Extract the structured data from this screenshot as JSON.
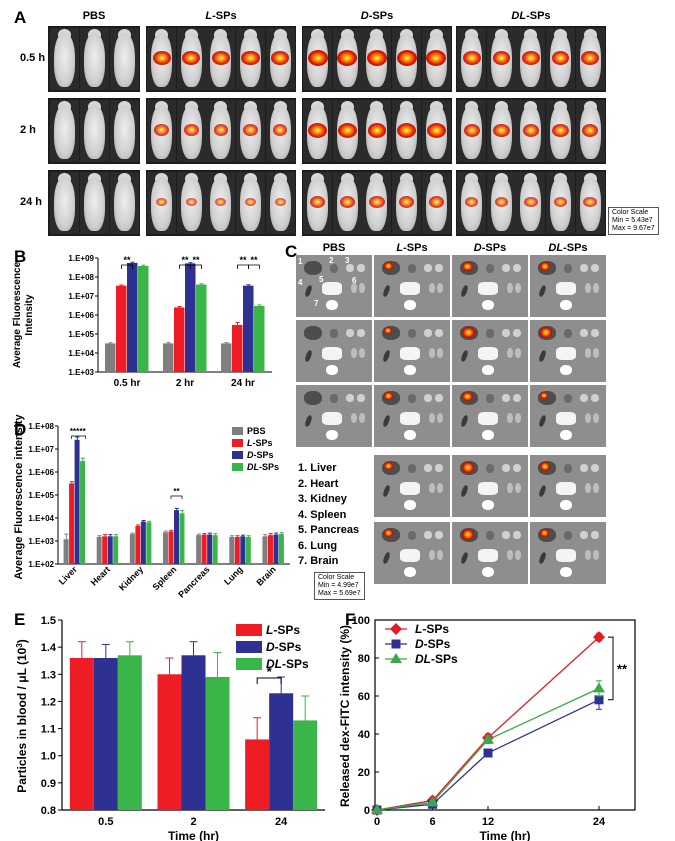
{
  "panels": [
    "A",
    "B",
    "C",
    "D",
    "E",
    "F"
  ],
  "panelA": {
    "groups": [
      {
        "prefix": "",
        "name": "PBS",
        "mice": 3,
        "signal": [
          0,
          0,
          0
        ]
      },
      {
        "prefix": "L",
        "name": "-SPs",
        "mice": 5,
        "signal": [
          0.85,
          0.55,
          0.25
        ]
      },
      {
        "prefix": "D",
        "name": "-SPs",
        "mice": 5,
        "signal": [
          1.0,
          0.9,
          0.6
        ]
      },
      {
        "prefix": "DL",
        "name": "-SPs",
        "mice": 5,
        "signal": [
          0.8,
          0.7,
          0.45
        ]
      }
    ],
    "times": [
      "0.5 h",
      "2 h",
      "24 h"
    ],
    "color_scale": {
      "title": "Color Scale",
      "min": "Min = 5.43e7",
      "max": "Max = 9.67e7"
    }
  },
  "panelC": {
    "groups": [
      {
        "prefix": "",
        "name": "PBS"
      },
      {
        "prefix": "L",
        "name": "-SPs"
      },
      {
        "prefix": "D",
        "name": "-SPs"
      },
      {
        "prefix": "DL",
        "name": "-SPs"
      }
    ],
    "organ_numbers": [
      "1",
      "2",
      "3",
      "4",
      "5",
      "6",
      "7"
    ],
    "organs": [
      "1.  Liver",
      "2.  Heart",
      "3.  Kidney",
      "4.  Spleen",
      "5.  Pancreas",
      "6.  Lung",
      "7.  Brain"
    ],
    "color_scale": {
      "title": "Color Scale",
      "min": "Min = 4.99e7",
      "max": "Max = 5.69e7"
    }
  },
  "colors": {
    "PBS": "#7f7f7f",
    "L": "#ee1c25",
    "D": "#2e3192",
    "DL": "#39b54a",
    "F_L": "#e31b23",
    "F_D": "#2e3192",
    "F_DL": "#39a94a"
  },
  "chart_data": [
    {
      "panel": "B",
      "type": "bar",
      "ylabel": [
        "Average Fluorescence",
        "Intensity"
      ],
      "yscale": "log",
      "ylim": [
        1000,
        1000000000
      ],
      "yticks": [
        "1.E+03",
        "1.E+04",
        "1.E+05",
        "1.E+06",
        "1.E+07",
        "1.E+08",
        "1.E+09"
      ],
      "categories": [
        "0.5 hr",
        "2 hr",
        "24 hr"
      ],
      "series": [
        {
          "key": "PBS",
          "values": [
            32000,
            32000,
            32000
          ],
          "err": [
            3000,
            3000,
            3000
          ]
        },
        {
          "key": "L",
          "values": [
            35000000,
            2500000,
            300000
          ],
          "err": [
            3000000,
            300000,
            100000
          ]
        },
        {
          "key": "D",
          "values": [
            550000000,
            520000000,
            35000000
          ],
          "err": [
            50000000,
            50000000,
            4000000
          ]
        },
        {
          "key": "DL",
          "values": [
            380000000,
            40000000,
            3000000
          ],
          "err": [
            40000000,
            4000000,
            400000
          ]
        }
      ],
      "annotations": [
        "**",
        "**",
        "**",
        "**",
        "**"
      ]
    },
    {
      "panel": "D",
      "type": "bar",
      "ylabel": [
        "Average Fluorescence intensity"
      ],
      "yscale": "log",
      "ylim": [
        100,
        100000000
      ],
      "yticks": [
        "1.E+02",
        "1.E+03",
        "1.E+04",
        "1.E+05",
        "1.E+06",
        "1.E+07",
        "1.E+08"
      ],
      "categories": [
        "Liver",
        "Heart",
        "Kidney",
        "Spleen",
        "Pancreas",
        "Lung",
        "Brain"
      ],
      "series": [
        {
          "key": "PBS",
          "name": "PBS",
          "values": [
            1200,
            1500,
            2000,
            2400,
            1800,
            1500,
            1600
          ],
          "err": [
            800,
            200,
            200,
            300,
            200,
            200,
            300
          ]
        },
        {
          "key": "L",
          "name": "-SPs",
          "prefix": "L",
          "values": [
            320000,
            1600,
            4500,
            2600,
            1900,
            1500,
            1800
          ],
          "err": [
            60000,
            300,
            500,
            300,
            200,
            200,
            300
          ]
        },
        {
          "key": "D",
          "name": "-SPs",
          "prefix": "D",
          "values": [
            25000000,
            1600,
            7000,
            22000,
            1900,
            1600,
            1900
          ],
          "err": [
            8000000,
            300,
            800,
            4000,
            300,
            200,
            300
          ]
        },
        {
          "key": "DL",
          "name": "-SPs",
          "prefix": "DL",
          "values": [
            3000000,
            1600,
            6500,
            16000,
            1800,
            1500,
            2000
          ],
          "err": [
            1000000,
            300,
            700,
            5000,
            300,
            200,
            300
          ]
        }
      ],
      "annotations": [
        "***",
        "**",
        "**"
      ]
    },
    {
      "panel": "E",
      "type": "bar",
      "ylabel": "Particles in blood / μL (10",
      "ylabel_sup": "3",
      "ylabel_end": ")",
      "xlabel": "Time (hr)",
      "ylim": [
        0.8,
        1.5
      ],
      "yticks": [
        "0.8",
        "0.9",
        "1.0",
        "1.1",
        "1.2",
        "1.3",
        "1.4",
        "1.5"
      ],
      "categories": [
        "0.5",
        "2",
        "24"
      ],
      "series": [
        {
          "key": "L",
          "prefix": "L",
          "name": "-SPs",
          "values": [
            1.36,
            1.3,
            1.06
          ],
          "err": [
            0.06,
            0.06,
            0.08
          ]
        },
        {
          "key": "D",
          "prefix": "D",
          "name": "-SPs",
          "values": [
            1.36,
            1.37,
            1.23
          ],
          "err": [
            0.05,
            0.05,
            0.06
          ]
        },
        {
          "key": "DL",
          "prefix": "DL",
          "name": "-SPs",
          "values": [
            1.37,
            1.29,
            1.13
          ],
          "err": [
            0.05,
            0.09,
            0.09
          ]
        }
      ],
      "annotations": [
        "*"
      ]
    },
    {
      "panel": "F",
      "type": "line",
      "ylabel": "Released dex-FITC intensity (%)",
      "xlabel": "Time (hr)",
      "xlim": [
        0,
        24
      ],
      "ylim": [
        0,
        100
      ],
      "xticks": [
        "0",
        "6",
        "12",
        "24"
      ],
      "yticks": [
        "0",
        "20",
        "40",
        "60",
        "80",
        "100"
      ],
      "x": [
        0,
        6,
        12,
        24
      ],
      "series": [
        {
          "key": "F_L",
          "prefix": "L",
          "name": "-SPs",
          "marker": "diamond",
          "values": [
            0,
            5,
            38,
            91
          ],
          "err": [
            0,
            1,
            2,
            2
          ]
        },
        {
          "key": "F_D",
          "prefix": "D",
          "name": "-SPs",
          "marker": "square",
          "values": [
            0,
            3,
            30,
            58
          ],
          "err": [
            0,
            1,
            2,
            5
          ]
        },
        {
          "key": "F_DL",
          "prefix": "DL",
          "name": "-SPs",
          "marker": "triangle",
          "values": [
            0,
            4,
            37,
            64
          ],
          "err": [
            0,
            1,
            2,
            4
          ]
        }
      ],
      "annotations": [
        "**"
      ]
    }
  ]
}
